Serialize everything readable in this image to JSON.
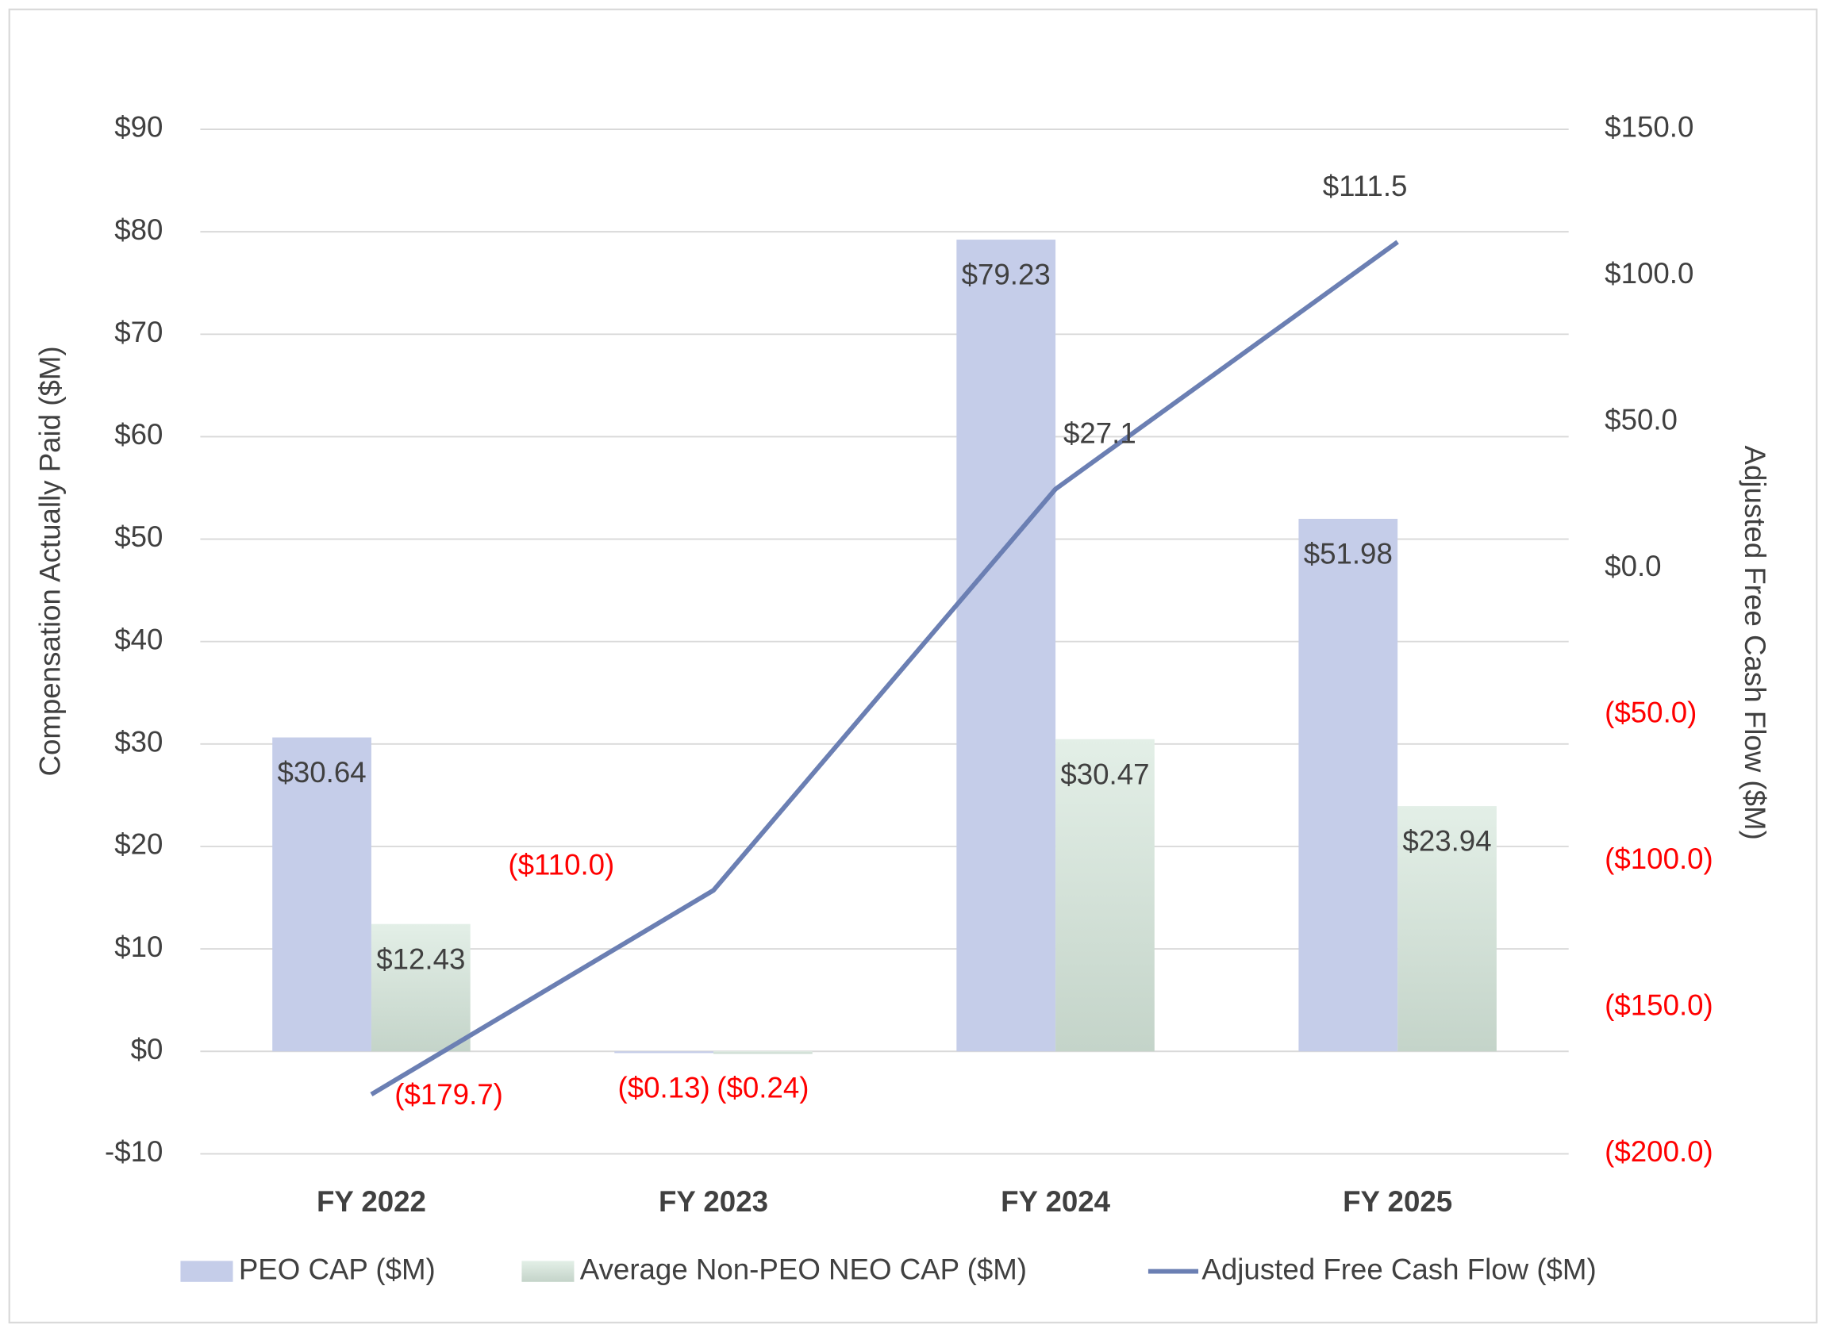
{
  "chart_data": {
    "type": "bar",
    "categories": [
      "FY 2022",
      "FY 2023",
      "FY 2024",
      "FY 2025"
    ],
    "y_label": "Compensation Actually Paid ($M)",
    "y2_label": "Adjusted Free Cash Flow ($M)",
    "ylim": [
      -10,
      90
    ],
    "yticks": [
      {
        "value": -10,
        "label": "-$10"
      },
      {
        "value": 0,
        "label": "$0"
      },
      {
        "value": 10,
        "label": "$10"
      },
      {
        "value": 20,
        "label": "$20"
      },
      {
        "value": 30,
        "label": "$30"
      },
      {
        "value": 40,
        "label": "$40"
      },
      {
        "value": 50,
        "label": "$50"
      },
      {
        "value": 60,
        "label": "$60"
      },
      {
        "value": 70,
        "label": "$70"
      },
      {
        "value": 80,
        "label": "$80"
      },
      {
        "value": 90,
        "label": "$90"
      }
    ],
    "y2lim": [
      -200,
      150
    ],
    "y2ticks": [
      {
        "value": -200,
        "label": "($200.0)"
      },
      {
        "value": -150,
        "label": "($150.0)"
      },
      {
        "value": -100,
        "label": "($100.0)"
      },
      {
        "value": -50,
        "label": "($50.0)"
      },
      {
        "value": 0,
        "label": "$0.0"
      },
      {
        "value": 50,
        "label": "$50.0"
      },
      {
        "value": 100,
        "label": "$100.0"
      },
      {
        "value": 150,
        "label": "$150.0"
      }
    ],
    "grid": true,
    "negative_color": "#ff0000",
    "series": [
      {
        "name": "PEO CAP ($M)",
        "type": "bar",
        "color": "#c5cde9",
        "values": [
          30.64,
          -0.13,
          79.23,
          51.98
        ],
        "value_labels": [
          "$30.64",
          "($0.13)",
          "$79.23",
          "$51.98"
        ]
      },
      {
        "name": "Average Non-PEO NEO CAP ($M)",
        "type": "bar",
        "color": "#d6e5da",
        "values": [
          12.43,
          -0.24,
          30.47,
          23.94
        ],
        "value_labels": [
          "$12.43",
          "($0.24)",
          "$30.47",
          "$23.94"
        ]
      },
      {
        "name": "Adjusted Free Cash Flow ($M)",
        "type": "line",
        "axis": "y2",
        "color": "#6b7fb3",
        "values": [
          -179.7,
          -110.0,
          27.1,
          111.5
        ],
        "value_labels": [
          "($179.7)",
          "($110.0)",
          "$27.1",
          "$111.5"
        ]
      }
    ]
  }
}
